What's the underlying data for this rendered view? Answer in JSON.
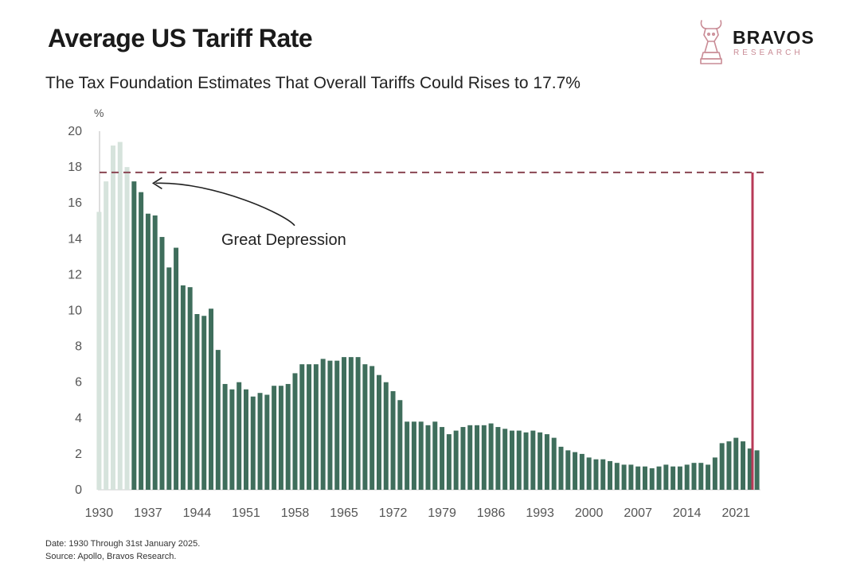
{
  "header": {
    "title": "Average US Tariff Rate",
    "subtitle": "The Tax Foundation Estimates That Overall Tariffs Could Rises to 17.7%"
  },
  "logo": {
    "name": "BRAVOS",
    "sub": "RESEARCH"
  },
  "footer": {
    "date_note": "Date: 1930 Through 31st January 2025.",
    "source_note": "Source: Apollo, Bravos Research."
  },
  "colors": {
    "bar": "#3f6e5c",
    "bar_highlight": "#d6e3dc",
    "reference_line": "#8a4552",
    "projection": "#b83a57",
    "axis_text": "#555555",
    "annotation": "#222222"
  },
  "chart_data": {
    "type": "bar",
    "title": "Average US Tariff Rate",
    "subtitle": "The Tax Foundation Estimates That Overall Tariffs Could Rises to 17.7%",
    "xlabel": "",
    "ylabel": "%",
    "ylim": [
      0,
      20
    ],
    "yticks": [
      0,
      2,
      4,
      6,
      8,
      10,
      12,
      14,
      16,
      18,
      20
    ],
    "xticks": [
      "1930",
      "1937",
      "1944",
      "1951",
      "1958",
      "1965",
      "1972",
      "1979",
      "1986",
      "1993",
      "2000",
      "2007",
      "2014",
      "2021"
    ],
    "grid": false,
    "x": [
      1930,
      1931,
      1932,
      1933,
      1934,
      1935,
      1936,
      1937,
      1938,
      1939,
      1940,
      1941,
      1942,
      1943,
      1944,
      1945,
      1946,
      1947,
      1948,
      1949,
      1950,
      1951,
      1952,
      1953,
      1954,
      1955,
      1956,
      1957,
      1958,
      1959,
      1960,
      1961,
      1962,
      1963,
      1964,
      1965,
      1966,
      1967,
      1968,
      1969,
      1970,
      1971,
      1972,
      1973,
      1974,
      1975,
      1976,
      1977,
      1978,
      1979,
      1980,
      1981,
      1982,
      1983,
      1984,
      1985,
      1986,
      1987,
      1988,
      1989,
      1990,
      1991,
      1992,
      1993,
      1994,
      1995,
      1996,
      1997,
      1998,
      1999,
      2000,
      2001,
      2002,
      2003,
      2004,
      2005,
      2006,
      2007,
      2008,
      2009,
      2010,
      2011,
      2012,
      2013,
      2014,
      2015,
      2016,
      2017,
      2018,
      2019,
      2020,
      2021,
      2022,
      2023,
      2024
    ],
    "values": [
      15.5,
      17.2,
      19.2,
      19.4,
      18.0,
      17.2,
      16.6,
      15.4,
      15.3,
      14.1,
      12.4,
      13.5,
      11.4,
      11.3,
      9.8,
      9.7,
      10.1,
      7.8,
      5.9,
      5.6,
      6.0,
      5.6,
      5.2,
      5.4,
      5.3,
      5.8,
      5.8,
      5.9,
      6.5,
      7.0,
      7.0,
      7.0,
      7.3,
      7.2,
      7.2,
      7.4,
      7.4,
      7.4,
      7.0,
      6.9,
      6.4,
      6.0,
      5.5,
      5.0,
      3.8,
      3.8,
      3.8,
      3.6,
      3.8,
      3.5,
      3.1,
      3.3,
      3.5,
      3.6,
      3.6,
      3.6,
      3.7,
      3.5,
      3.4,
      3.3,
      3.3,
      3.2,
      3.3,
      3.2,
      3.1,
      2.9,
      2.4,
      2.2,
      2.1,
      2.0,
      1.8,
      1.7,
      1.7,
      1.6,
      1.5,
      1.4,
      1.4,
      1.3,
      1.3,
      1.2,
      1.3,
      1.4,
      1.3,
      1.3,
      1.4,
      1.5,
      1.5,
      1.4,
      1.8,
      2.6,
      2.7,
      2.9,
      2.7,
      2.3,
      2.2
    ],
    "highlight_years": [
      1930,
      1931,
      1932,
      1933,
      1934
    ],
    "reference_line": 17.7,
    "projection_value": 17.7,
    "annotation": {
      "text": "Great Depression",
      "x": 1940,
      "y": 14.2,
      "arrow_to_x": 1937,
      "arrow_to_y": 17.1
    }
  }
}
